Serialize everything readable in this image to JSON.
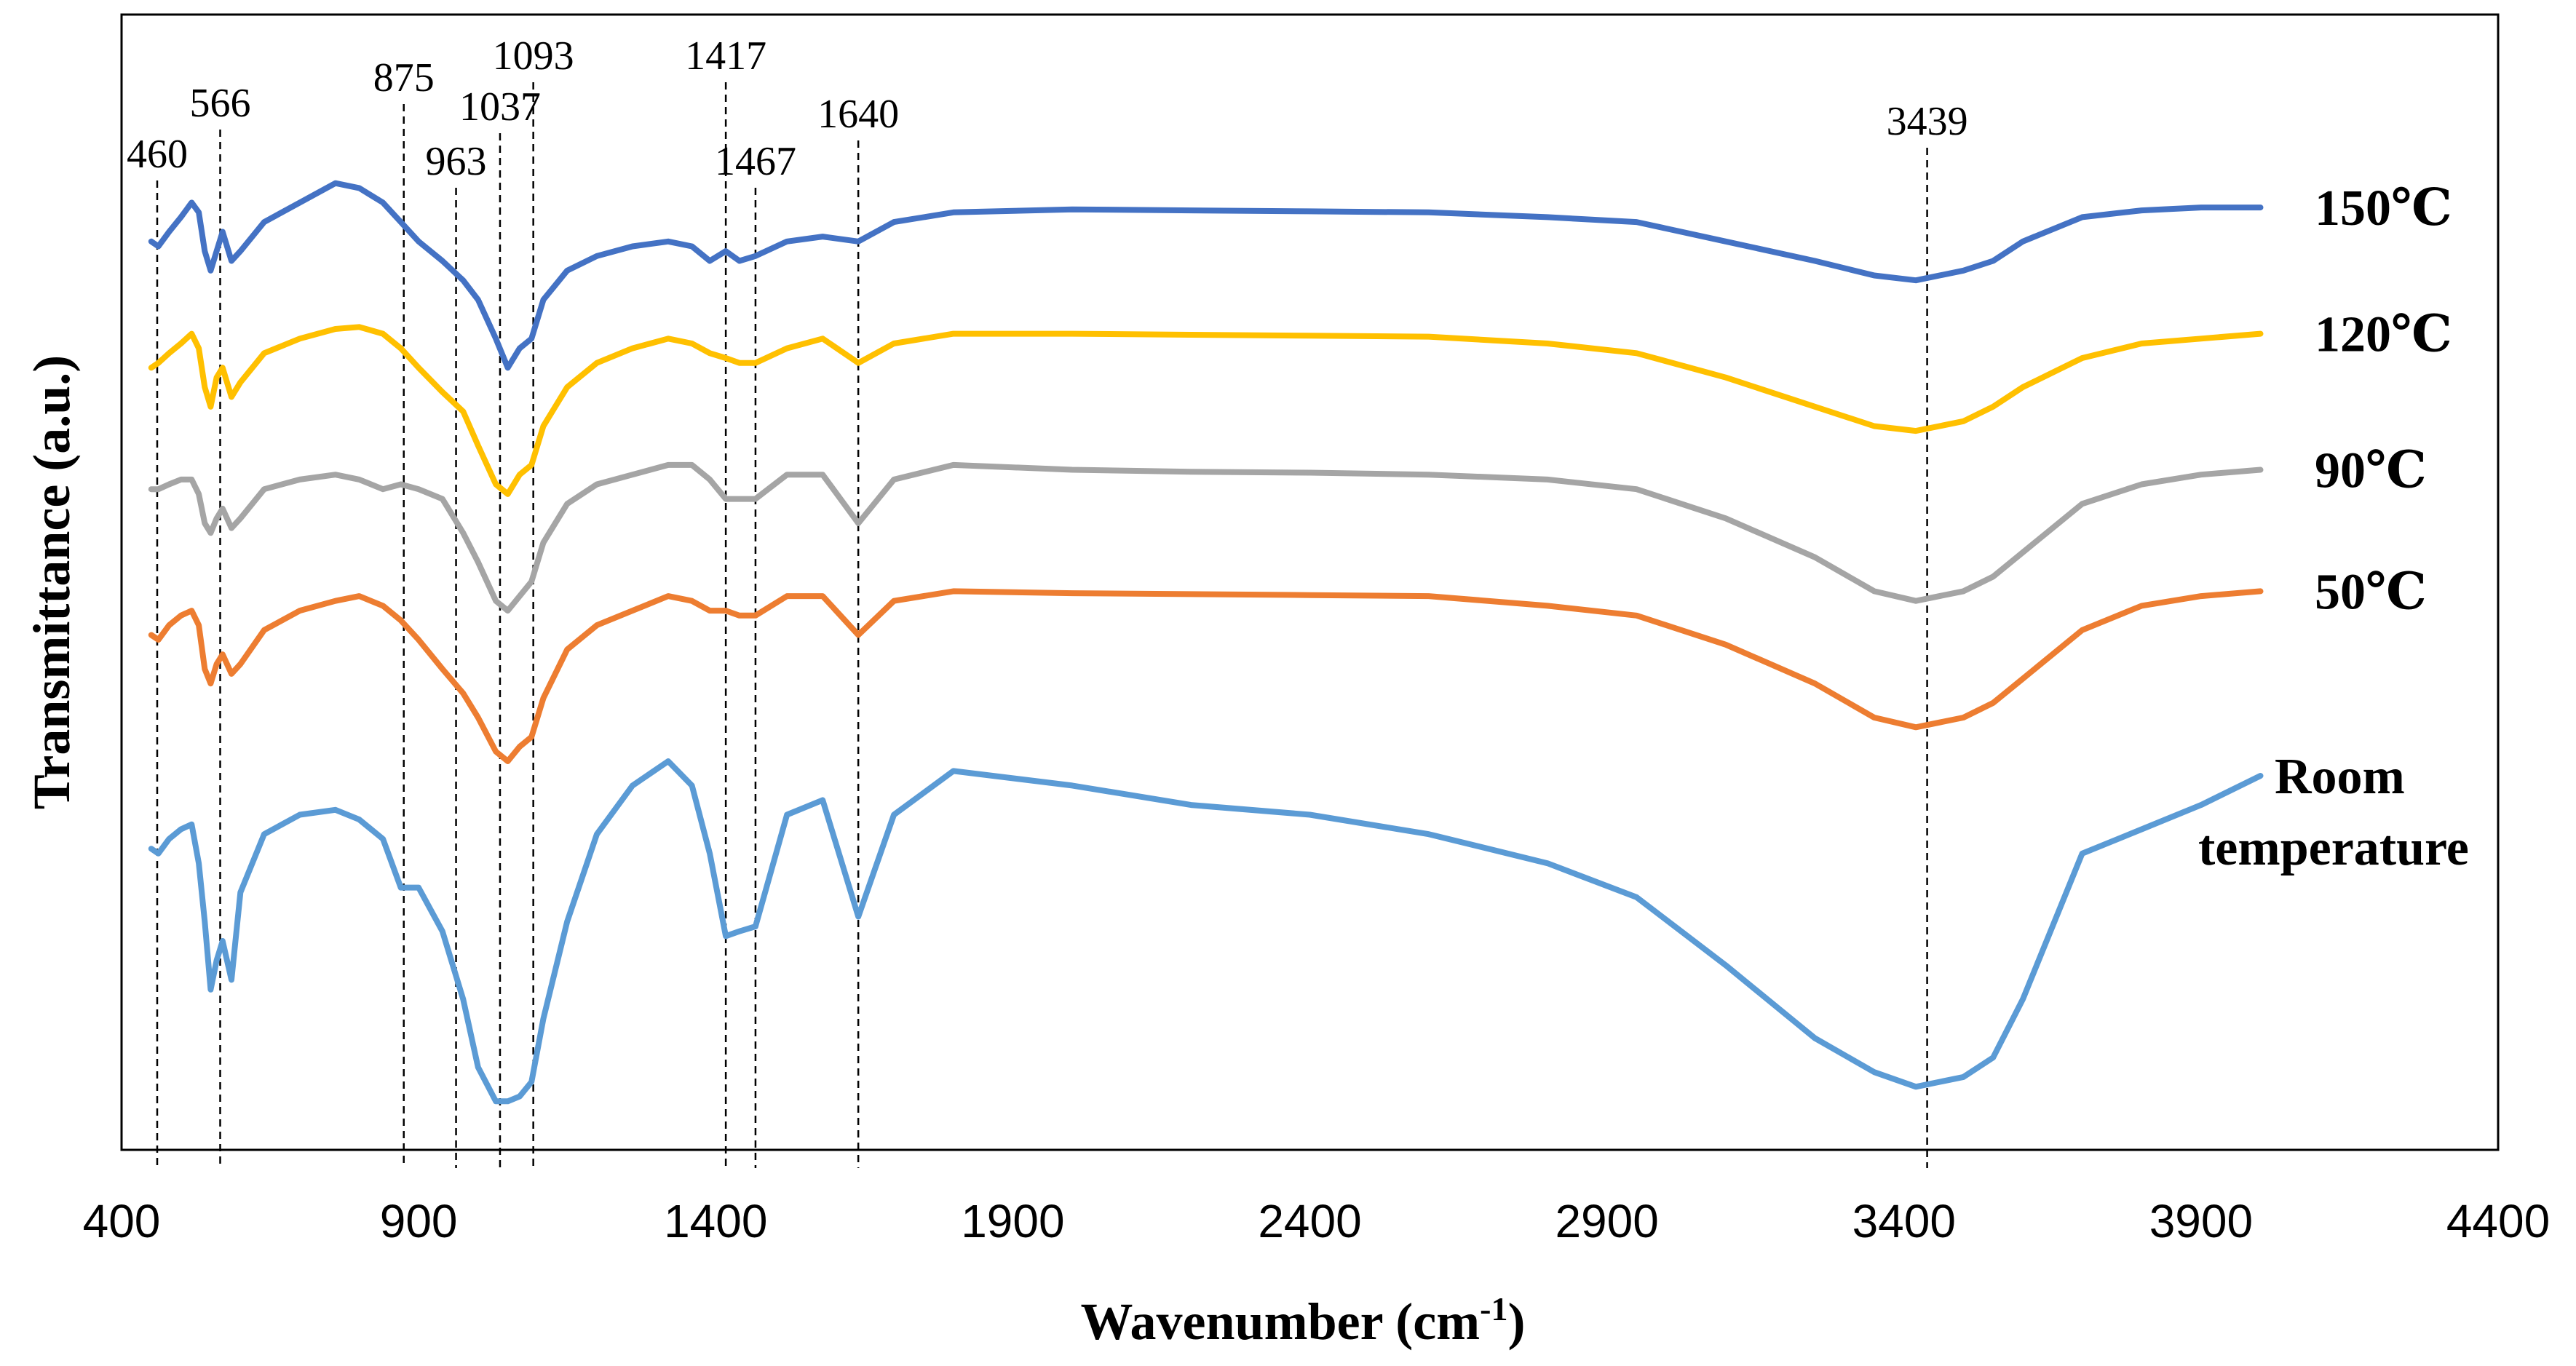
{
  "chart_data": {
    "type": "line",
    "title": "",
    "xlabel": "Wavenumber (cm",
    "xlabel_sup": "-1",
    "xlabel_close": ")",
    "ylabel": "Transmittance (a.u.)",
    "xlim": [
      400,
      4400
    ],
    "ylim": [
      0,
      100
    ],
    "xticks": [
      400,
      900,
      1400,
      1900,
      2400,
      2900,
      3400,
      3900,
      4400
    ],
    "peaks": [
      {
        "x": 460,
        "label": "460"
      },
      {
        "x": 566,
        "label": "566"
      },
      {
        "x": 875,
        "label": "875"
      },
      {
        "x": 963,
        "label": "963"
      },
      {
        "x": 1037,
        "label": "1037"
      },
      {
        "x": 1093,
        "label": "1093"
      },
      {
        "x": 1417,
        "label": "1417"
      },
      {
        "x": 1467,
        "label": "1467"
      },
      {
        "x": 1640,
        "label": "1640"
      },
      {
        "x": 3439,
        "label": "3439"
      }
    ],
    "series": [
      {
        "name": "150 ℃",
        "label_lines": [
          "150℃"
        ],
        "color": "#4472C4",
        "x": [
          450,
          462,
          480,
          500,
          518,
          530,
          540,
          550,
          560,
          570,
          585,
          600,
          640,
          700,
          760,
          800,
          840,
          870,
          900,
          940,
          975,
          1000,
          1030,
          1050,
          1070,
          1090,
          1110,
          1150,
          1200,
          1260,
          1320,
          1360,
          1390,
          1417,
          1440,
          1467,
          1520,
          1580,
          1640,
          1700,
          1800,
          2000,
          2200,
          2400,
          2600,
          2800,
          2950,
          3100,
          3250,
          3350,
          3420,
          3500,
          3550,
          3600,
          3700,
          3800,
          3900,
          4000
        ],
        "y": [
          92,
          91.5,
          93,
          94.5,
          96,
          95,
          91,
          89,
          91,
          93,
          90,
          91,
          94,
          96,
          98,
          97.5,
          96,
          94,
          92,
          90,
          88,
          86,
          82,
          79,
          81,
          82,
          86,
          89,
          90.5,
          91.5,
          92,
          91.5,
          90,
          91,
          90,
          90.5,
          92,
          92.5,
          92,
          94,
          95,
          95.3,
          95.2,
          95.1,
          95,
          94.5,
          94,
          92,
          90,
          88.5,
          88,
          89,
          90,
          92,
          94.5,
          95.2,
          95.5,
          95.5
        ]
      },
      {
        "name": "120 ℃",
        "label_lines": [
          "120℃"
        ],
        "color": "#FFC000",
        "x": [
          450,
          462,
          480,
          500,
          518,
          530,
          540,
          550,
          560,
          570,
          585,
          600,
          640,
          700,
          760,
          800,
          840,
          870,
          900,
          940,
          975,
          1000,
          1030,
          1050,
          1070,
          1090,
          1110,
          1150,
          1200,
          1260,
          1320,
          1360,
          1390,
          1417,
          1440,
          1467,
          1520,
          1580,
          1640,
          1700,
          1800,
          2000,
          2200,
          2400,
          2600,
          2800,
          2950,
          3100,
          3250,
          3350,
          3420,
          3500,
          3550,
          3600,
          3700,
          3800,
          3900,
          4000
        ],
        "y": [
          79,
          79.5,
          80.5,
          81.5,
          82.5,
          81,
          77,
          75,
          78,
          79,
          76,
          77.5,
          80.5,
          82,
          83,
          83.2,
          82.5,
          81,
          79,
          76.5,
          74.5,
          71,
          67,
          66,
          68,
          69,
          73,
          77,
          79.5,
          81,
          82,
          81.5,
          80.5,
          80,
          79.5,
          79.5,
          81,
          82,
          79.5,
          81.5,
          82.5,
          82.5,
          82.4,
          82.3,
          82.2,
          81.5,
          80.5,
          78,
          75,
          73,
          72.5,
          73.5,
          75,
          77,
          80,
          81.5,
          82,
          82.5
        ]
      },
      {
        "name": "90 ℃",
        "label_lines": [
          "90℃"
        ],
        "color": "#A5A5A5",
        "x": [
          450,
          462,
          480,
          500,
          518,
          530,
          540,
          550,
          560,
          570,
          585,
          600,
          640,
          700,
          760,
          800,
          840,
          870,
          900,
          940,
          975,
          1000,
          1030,
          1050,
          1070,
          1090,
          1110,
          1150,
          1200,
          1260,
          1320,
          1360,
          1390,
          1417,
          1440,
          1467,
          1520,
          1580,
          1640,
          1700,
          1800,
          2000,
          2200,
          2400,
          2600,
          2800,
          2950,
          3100,
          3250,
          3350,
          3420,
          3500,
          3550,
          3600,
          3700,
          3800,
          3900,
          4000
        ],
        "y": [
          66.5,
          66.5,
          67,
          67.5,
          67.5,
          66,
          63,
          62,
          63.5,
          64.5,
          62.5,
          63.5,
          66.5,
          67.5,
          68,
          67.5,
          66.5,
          67,
          66.5,
          65.5,
          62,
          59,
          55,
          54,
          55.5,
          57,
          61,
          65,
          67,
          68,
          69,
          69,
          67.5,
          65.5,
          65.5,
          65.5,
          68,
          68,
          63,
          67.5,
          69,
          68.5,
          68.3,
          68.2,
          68,
          67.5,
          66.5,
          63.5,
          59.5,
          56,
          55,
          56,
          57.5,
          60,
          65,
          67,
          68,
          68.5
        ]
      },
      {
        "name": "50 ℃",
        "label_lines": [
          "50℃"
        ],
        "color": "#ED7D31",
        "x": [
          450,
          462,
          480,
          500,
          518,
          530,
          540,
          550,
          560,
          570,
          585,
          600,
          640,
          700,
          760,
          800,
          840,
          870,
          900,
          940,
          975,
          1000,
          1030,
          1050,
          1070,
          1090,
          1110,
          1150,
          1200,
          1260,
          1320,
          1360,
          1390,
          1417,
          1440,
          1467,
          1520,
          1580,
          1640,
          1700,
          1800,
          2000,
          2200,
          2400,
          2600,
          2800,
          2950,
          3100,
          3250,
          3350,
          3420,
          3500,
          3550,
          3600,
          3700,
          3800,
          3900,
          4000
        ],
        "y": [
          51.5,
          51,
          52.5,
          53.5,
          54,
          52.5,
          48,
          46.5,
          48.5,
          49.5,
          47.5,
          48.5,
          52,
          54,
          55,
          55.5,
          54.5,
          53,
          51,
          48,
          45.5,
          43,
          39.5,
          38.5,
          40,
          41,
          45,
          50,
          52.5,
          54,
          55.5,
          55,
          54,
          54,
          53.5,
          53.5,
          55.5,
          55.5,
          51.5,
          55,
          56,
          55.8,
          55.7,
          55.6,
          55.5,
          54.5,
          53.5,
          50.5,
          46.5,
          43,
          42,
          43,
          44.5,
          47,
          52,
          54.5,
          55.5,
          56
        ]
      },
      {
        "name": "Room temperature",
        "label_lines": [
          "Room",
          "temperature"
        ],
        "color": "#5B9BD5",
        "x": [
          450,
          462,
          480,
          500,
          518,
          530,
          540,
          550,
          560,
          570,
          585,
          600,
          640,
          700,
          760,
          800,
          840,
          870,
          900,
          940,
          975,
          1000,
          1030,
          1050,
          1070,
          1090,
          1110,
          1150,
          1200,
          1260,
          1320,
          1360,
          1390,
          1417,
          1440,
          1467,
          1520,
          1580,
          1640,
          1700,
          1800,
          2000,
          2200,
          2400,
          2600,
          2800,
          2950,
          3100,
          3250,
          3350,
          3420,
          3500,
          3550,
          3600,
          3700,
          3800,
          3900,
          4000
        ],
        "y": [
          29.5,
          29,
          30.5,
          31.5,
          32,
          28,
          22,
          15,
          18,
          20,
          16,
          25,
          31,
          33,
          33.5,
          32.5,
          30.5,
          25.5,
          25.5,
          21,
          14,
          7,
          3.5,
          3.5,
          4,
          5.5,
          12,
          22,
          31,
          36,
          38.5,
          36,
          29,
          20.5,
          21,
          21.5,
          33,
          34.5,
          22.5,
          33,
          37.5,
          36,
          34,
          33,
          31,
          28,
          24.5,
          17.5,
          10,
          6.5,
          5,
          6,
          8,
          14,
          29,
          31.5,
          34,
          37
        ]
      }
    ]
  }
}
